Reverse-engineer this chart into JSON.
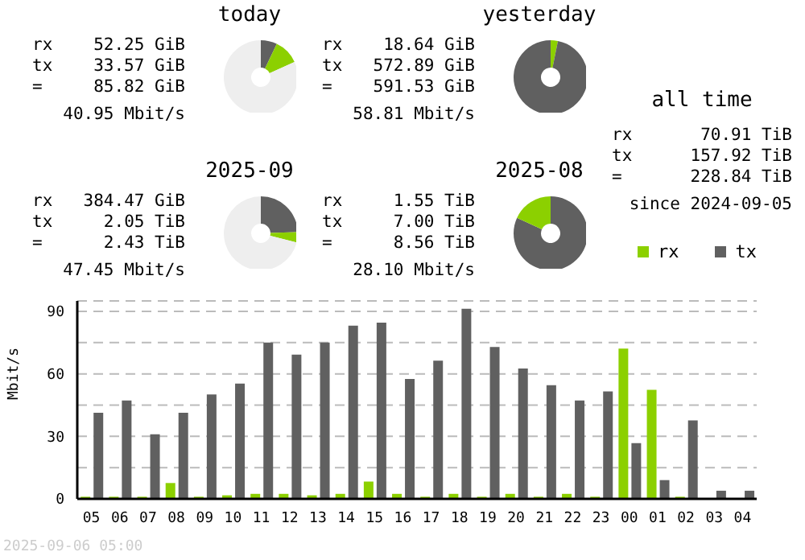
{
  "chart_data": [
    {
      "type": "donut",
      "title": "today",
      "annotations": [
        "rx 52.25 GiB",
        "tx 33.57 GiB",
        "= 85.82 GiB",
        "40.95 Mbit/s"
      ],
      "categories": [
        null,
        null,
        null
      ],
      "values": [
        7.1,
        11.1,
        81.8
      ],
      "colors": [
        "#606060",
        "#8cd000",
        "#eeeeee"
      ]
    },
    {
      "type": "donut",
      "title": "yesterday",
      "annotations": [
        "rx 18.64 GiB",
        "tx 572.89 GiB",
        "= 591.53 GiB",
        "58.81 Mbit/s"
      ],
      "categories": [
        null,
        null
      ],
      "values": [
        3.15,
        96.85
      ],
      "colors": [
        "#8cd000",
        "#606060"
      ]
    },
    {
      "type": "donut",
      "title": "2025-09",
      "annotations": [
        "rx 384.47 GiB",
        "tx 2.05 TiB",
        "= 2.43 TiB",
        "47.45 Mbit/s"
      ],
      "categories": [
        null,
        null,
        null
      ],
      "values": [
        24.5,
        4.5,
        71
      ],
      "colors": [
        "#606060",
        "#8cd000",
        "#eeeeee"
      ]
    },
    {
      "type": "donut",
      "title": "2025-08",
      "annotations": [
        "rx 1.55 TiB",
        "tx 7.00 TiB",
        "= 8.56 TiB",
        "28.10 Mbit/s"
      ],
      "categories": [
        null,
        null
      ],
      "values": [
        81.9,
        18.1
      ],
      "colors": [
        "#606060",
        "#8cd000"
      ]
    },
    {
      "type": "other",
      "title": "all time",
      "annotations": [
        "rx 70.91 TiB",
        "tx 157.92 TiB",
        "= 228.84 TiB",
        "since 2024-09-05"
      ]
    },
    {
      "type": "bar",
      "ylabel": "Mbit/s",
      "annotations": [
        "2025-09-06 05:00"
      ],
      "categories": [
        "05",
        "06",
        "07",
        "08",
        "09",
        "10",
        "11",
        "12",
        "13",
        "14",
        "15",
        "16",
        "17",
        "18",
        "19",
        "20",
        "21",
        "22",
        "23",
        "00",
        "01",
        "02",
        "03",
        "04"
      ],
      "series": [
        {
          "name": "rx",
          "color": "#8cd000",
          "values": [
            1,
            1,
            1,
            7.6,
            1,
            1.7,
            2.4,
            2.4,
            1.7,
            2.4,
            8.3,
            2.4,
            1,
            2.4,
            1,
            2.4,
            1,
            2.4,
            1,
            72.1,
            52.3,
            1,
            0,
            0
          ]
        },
        {
          "name": "tx",
          "color": "#606060",
          "values": [
            41.3,
            47.2,
            31,
            41.3,
            50.1,
            55.3,
            75,
            69.2,
            75,
            83.1,
            84.6,
            57.5,
            66.3,
            91.2,
            72.9,
            62.6,
            54.5,
            47.2,
            51.6,
            26.7,
            9,
            37.7,
            3.9,
            3.9
          ]
        }
      ],
      "ylim": [
        0,
        95
      ],
      "yticks": [
        0,
        {
          "value": 15,
          "label": null
        },
        30,
        {
          "value": 45,
          "label": null
        },
        60,
        {
          "value": 75,
          "label": null
        },
        90
      ],
      "grid": "y",
      "legend": "top right"
    }
  ]
}
